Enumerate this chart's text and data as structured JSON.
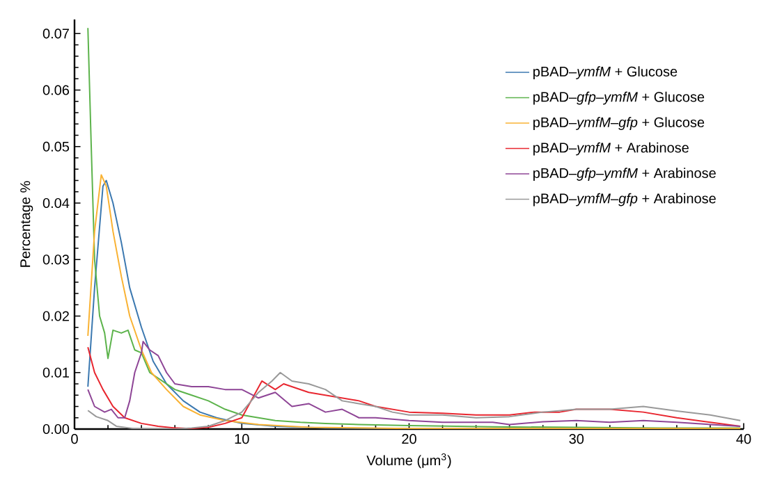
{
  "chart_data": {
    "type": "line",
    "xlabel": "Volume (μm$^{3}$)",
    "ylabel": "Percentage %",
    "xlim": [
      0,
      40
    ],
    "ylim": [
      0,
      0.0725
    ],
    "xticks": [
      0,
      10,
      20,
      30,
      40
    ],
    "yticks": [
      {
        "value": 0,
        "label": "0.00"
      },
      {
        "value": 0.01,
        "label": "0.01"
      },
      {
        "value": 0.02,
        "label": "0.02"
      },
      {
        "value": 0.03,
        "label": "0.03"
      },
      {
        "value": 0.04,
        "label": "0.04"
      },
      {
        "value": 0.05,
        "label": "0.05"
      },
      {
        "value": 0.06,
        "label": "0.06"
      },
      {
        "value": 0.07,
        "label": "0.07"
      }
    ],
    "legend": "top right",
    "series": [
      {
        "name": "pBAD–*ymfM* + Glucose",
        "color": "#3b78b0",
        "x": [
          0.8,
          1.2,
          1.7,
          1.9,
          2.3,
          2.8,
          3.3,
          4,
          4.7,
          5.5,
          6.5,
          7.5,
          8.5,
          10,
          12,
          15,
          20
        ],
        "values": [
          0.0075,
          0.025,
          0.043,
          0.044,
          0.04,
          0.033,
          0.025,
          0.018,
          0.012,
          0.008,
          0.005,
          0.003,
          0.002,
          0.001,
          0.0005,
          0.0002,
          0.0001
        ]
      },
      {
        "name": "pBAD–*gfp*–*ymfM* + Glucose",
        "color": "#5cb34b",
        "x": [
          0.8,
          1.0,
          1.2,
          1.5,
          1.8,
          2.0,
          2.3,
          2.8,
          3.2,
          3.6,
          4,
          4.5,
          5,
          6,
          7,
          8,
          9,
          10,
          11,
          12,
          13.5,
          15,
          17,
          20,
          25,
          30,
          35,
          39.8
        ],
        "values": [
          0.071,
          0.05,
          0.03,
          0.02,
          0.017,
          0.0125,
          0.0175,
          0.017,
          0.0175,
          0.014,
          0.0135,
          0.01,
          0.009,
          0.007,
          0.006,
          0.005,
          0.0035,
          0.0025,
          0.002,
          0.0015,
          0.0012,
          0.001,
          0.0008,
          0.0006,
          0.0004,
          0.0003,
          0.0002,
          0.0002
        ]
      },
      {
        "name": "pBAD–*ymfM*–*gfp* + Glucose",
        "color": "#f9b233",
        "x": [
          0.8,
          1.2,
          1.6,
          1.9,
          2.3,
          2.8,
          3.3,
          4,
          4.6,
          5.5,
          6.5,
          7.5,
          9,
          11,
          14,
          20,
          30,
          39.8
        ],
        "values": [
          0.0165,
          0.035,
          0.045,
          0.043,
          0.035,
          0.027,
          0.02,
          0.014,
          0.01,
          0.007,
          0.004,
          0.0025,
          0.0015,
          0.0008,
          0.0003,
          0.0001,
          0.0001,
          0.0001
        ]
      },
      {
        "name": "pBAD–*ymfM* + Arabinose",
        "color": "#e8262f",
        "x": [
          0.8,
          1.2,
          1.7,
          2.3,
          3,
          4,
          5,
          6,
          7,
          8,
          9,
          10,
          11.2,
          12,
          12.5,
          14,
          15,
          16,
          17,
          18,
          19,
          20,
          22,
          24,
          26,
          27.5,
          29,
          30,
          32,
          34,
          36,
          38,
          39.8
        ],
        "values": [
          0.0145,
          0.01,
          0.007,
          0.004,
          0.002,
          0.001,
          0.0005,
          0.0002,
          0.0001,
          0.0003,
          0.001,
          0.002,
          0.0085,
          0.007,
          0.008,
          0.0065,
          0.006,
          0.0055,
          0.005,
          0.004,
          0.0035,
          0.003,
          0.0028,
          0.0025,
          0.0025,
          0.003,
          0.003,
          0.0035,
          0.0035,
          0.003,
          0.002,
          0.0012,
          0.0005
        ]
      },
      {
        "name": "pBAD–*gfp*–*ymfM* + Arabinose",
        "color": "#8e4596",
        "x": [
          0.8,
          1.2,
          1.8,
          2.2,
          2.6,
          3,
          3.3,
          3.6,
          4,
          4.1,
          4.5,
          5,
          5.5,
          6,
          7,
          8,
          9,
          10,
          11,
          12,
          13,
          14,
          15,
          16,
          17,
          18,
          20,
          22,
          25,
          26,
          28,
          30,
          32,
          34,
          36,
          38,
          39.8
        ],
        "values": [
          0.007,
          0.004,
          0.003,
          0.0035,
          0.002,
          0.002,
          0.005,
          0.01,
          0.0135,
          0.0155,
          0.014,
          0.013,
          0.01,
          0.008,
          0.0075,
          0.0075,
          0.007,
          0.007,
          0.0055,
          0.0065,
          0.004,
          0.0045,
          0.003,
          0.0035,
          0.002,
          0.002,
          0.0015,
          0.0012,
          0.0012,
          0.0008,
          0.0013,
          0.0015,
          0.0012,
          0.0015,
          0.0012,
          0.0008,
          0.0005
        ]
      },
      {
        "name": "pBAD–*ymfM*–*gfp* + Arabinose",
        "color": "#999999",
        "x": [
          0.8,
          1.3,
          2,
          2.5,
          3.5,
          5,
          6,
          7,
          8,
          9,
          10,
          11,
          11.8,
          12.3,
          13,
          14,
          15,
          16,
          17,
          18,
          19,
          20,
          22,
          24,
          26,
          28,
          30,
          32,
          34,
          36,
          38,
          39.8
        ],
        "values": [
          0.0033,
          0.0022,
          0.0015,
          0.0005,
          0.0001,
          0,
          0,
          0.0002,
          0.0005,
          0.0015,
          0.003,
          0.0065,
          0.0085,
          0.01,
          0.0085,
          0.008,
          0.007,
          0.005,
          0.0045,
          0.004,
          0.003,
          0.0025,
          0.0025,
          0.002,
          0.0022,
          0.003,
          0.0035,
          0.0035,
          0.004,
          0.0032,
          0.0025,
          0.0015
        ]
      }
    ]
  }
}
